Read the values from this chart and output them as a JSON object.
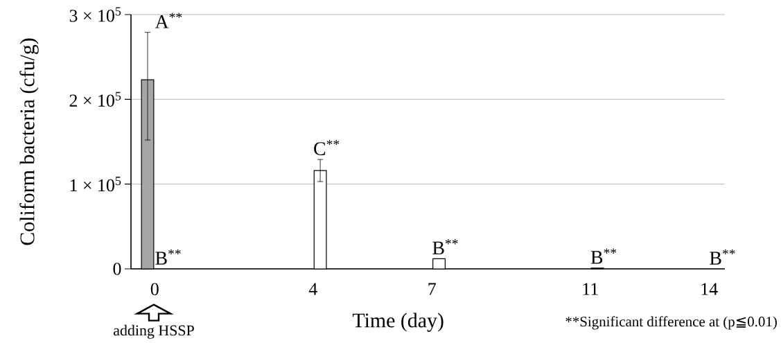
{
  "chart_data": {
    "type": "bar",
    "xlabel": "Time (day)",
    "ylabel": "Coliform bacteria (cfu/g)",
    "series": [
      {
        "color": "#a6a6a6",
        "x": [
          0
        ],
        "values": [
          223000
        ],
        "errors": [
          [
            152000,
            279000
          ]
        ]
      },
      {
        "color": "#ffffff",
        "x": [
          0,
          4,
          7,
          11,
          14
        ],
        "values": [
          0,
          116000,
          12000,
          1000,
          0
        ],
        "errors": [
          null,
          13000,
          null,
          null,
          null
        ]
      }
    ],
    "xlim": [
      -0.6,
      14.4
    ],
    "xticks": [
      0,
      4,
      7,
      11,
      14
    ],
    "ylim": [
      0,
      300000
    ],
    "yticks": [
      0,
      {
        "value": 100000,
        "label": "1 × 10$^{5}$"
      },
      {
        "value": 200000,
        "label": "2 × 10$^{5}$"
      },
      {
        "value": 300000,
        "label": "3 × 10$^{5}$"
      }
    ],
    "grid": "y",
    "annotations": [
      {
        "text": "A$^{**}$",
        "x": 0,
        "y": 223000
      },
      {
        "text": "B$^{**}$",
        "x": 0,
        "y": 0
      },
      {
        "text": "C$^{**}$",
        "x": 4,
        "y": 116000
      },
      {
        "text": "B$^{**}$",
        "x": 7,
        "y": 12000
      },
      {
        "text": "B$^{**}$",
        "x": 11,
        "y": 1000
      },
      {
        "text": "B$^{**}$",
        "x": 14,
        "y": 0
      },
      "adding HSSP",
      "**Significant difference at (p≦0.01)"
    ]
  }
}
